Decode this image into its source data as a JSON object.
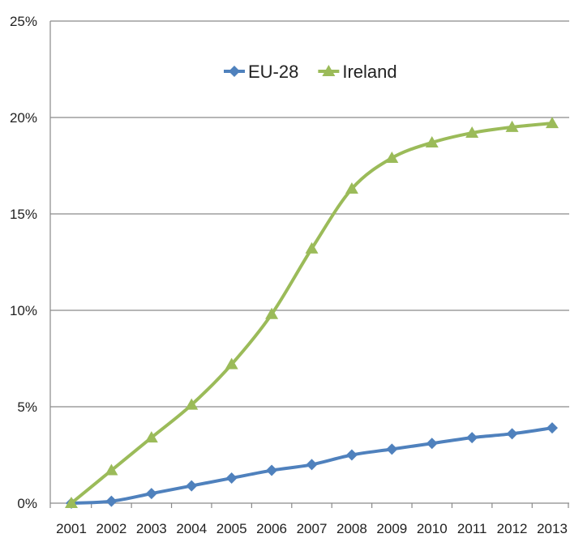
{
  "chart_data": {
    "type": "line",
    "categories": [
      "2001",
      "2002",
      "2003",
      "2004",
      "2005",
      "2006",
      "2007",
      "2008",
      "2009",
      "2010",
      "2011",
      "2012",
      "2013"
    ],
    "series": [
      {
        "name": "EU-28",
        "color": "#4f81bd",
        "marker": "diamond",
        "values": [
          0.0,
          0.1,
          0.5,
          0.9,
          1.3,
          1.7,
          2.0,
          2.5,
          2.8,
          3.1,
          3.4,
          3.6,
          3.9
        ]
      },
      {
        "name": "Ireland",
        "color": "#9bbb59",
        "marker": "triangle",
        "values": [
          0.0,
          1.7,
          3.4,
          5.1,
          7.2,
          9.8,
          13.2,
          16.3,
          17.9,
          18.7,
          19.2,
          19.5,
          19.7
        ]
      }
    ],
    "ylim": [
      0,
      25
    ],
    "yticks": [
      "0%",
      "5%",
      "10%",
      "15%",
      "20%",
      "25%"
    ],
    "ytick_values": [
      0,
      5,
      10,
      15,
      20,
      25
    ],
    "grid": true,
    "legend_position": "top-center"
  }
}
